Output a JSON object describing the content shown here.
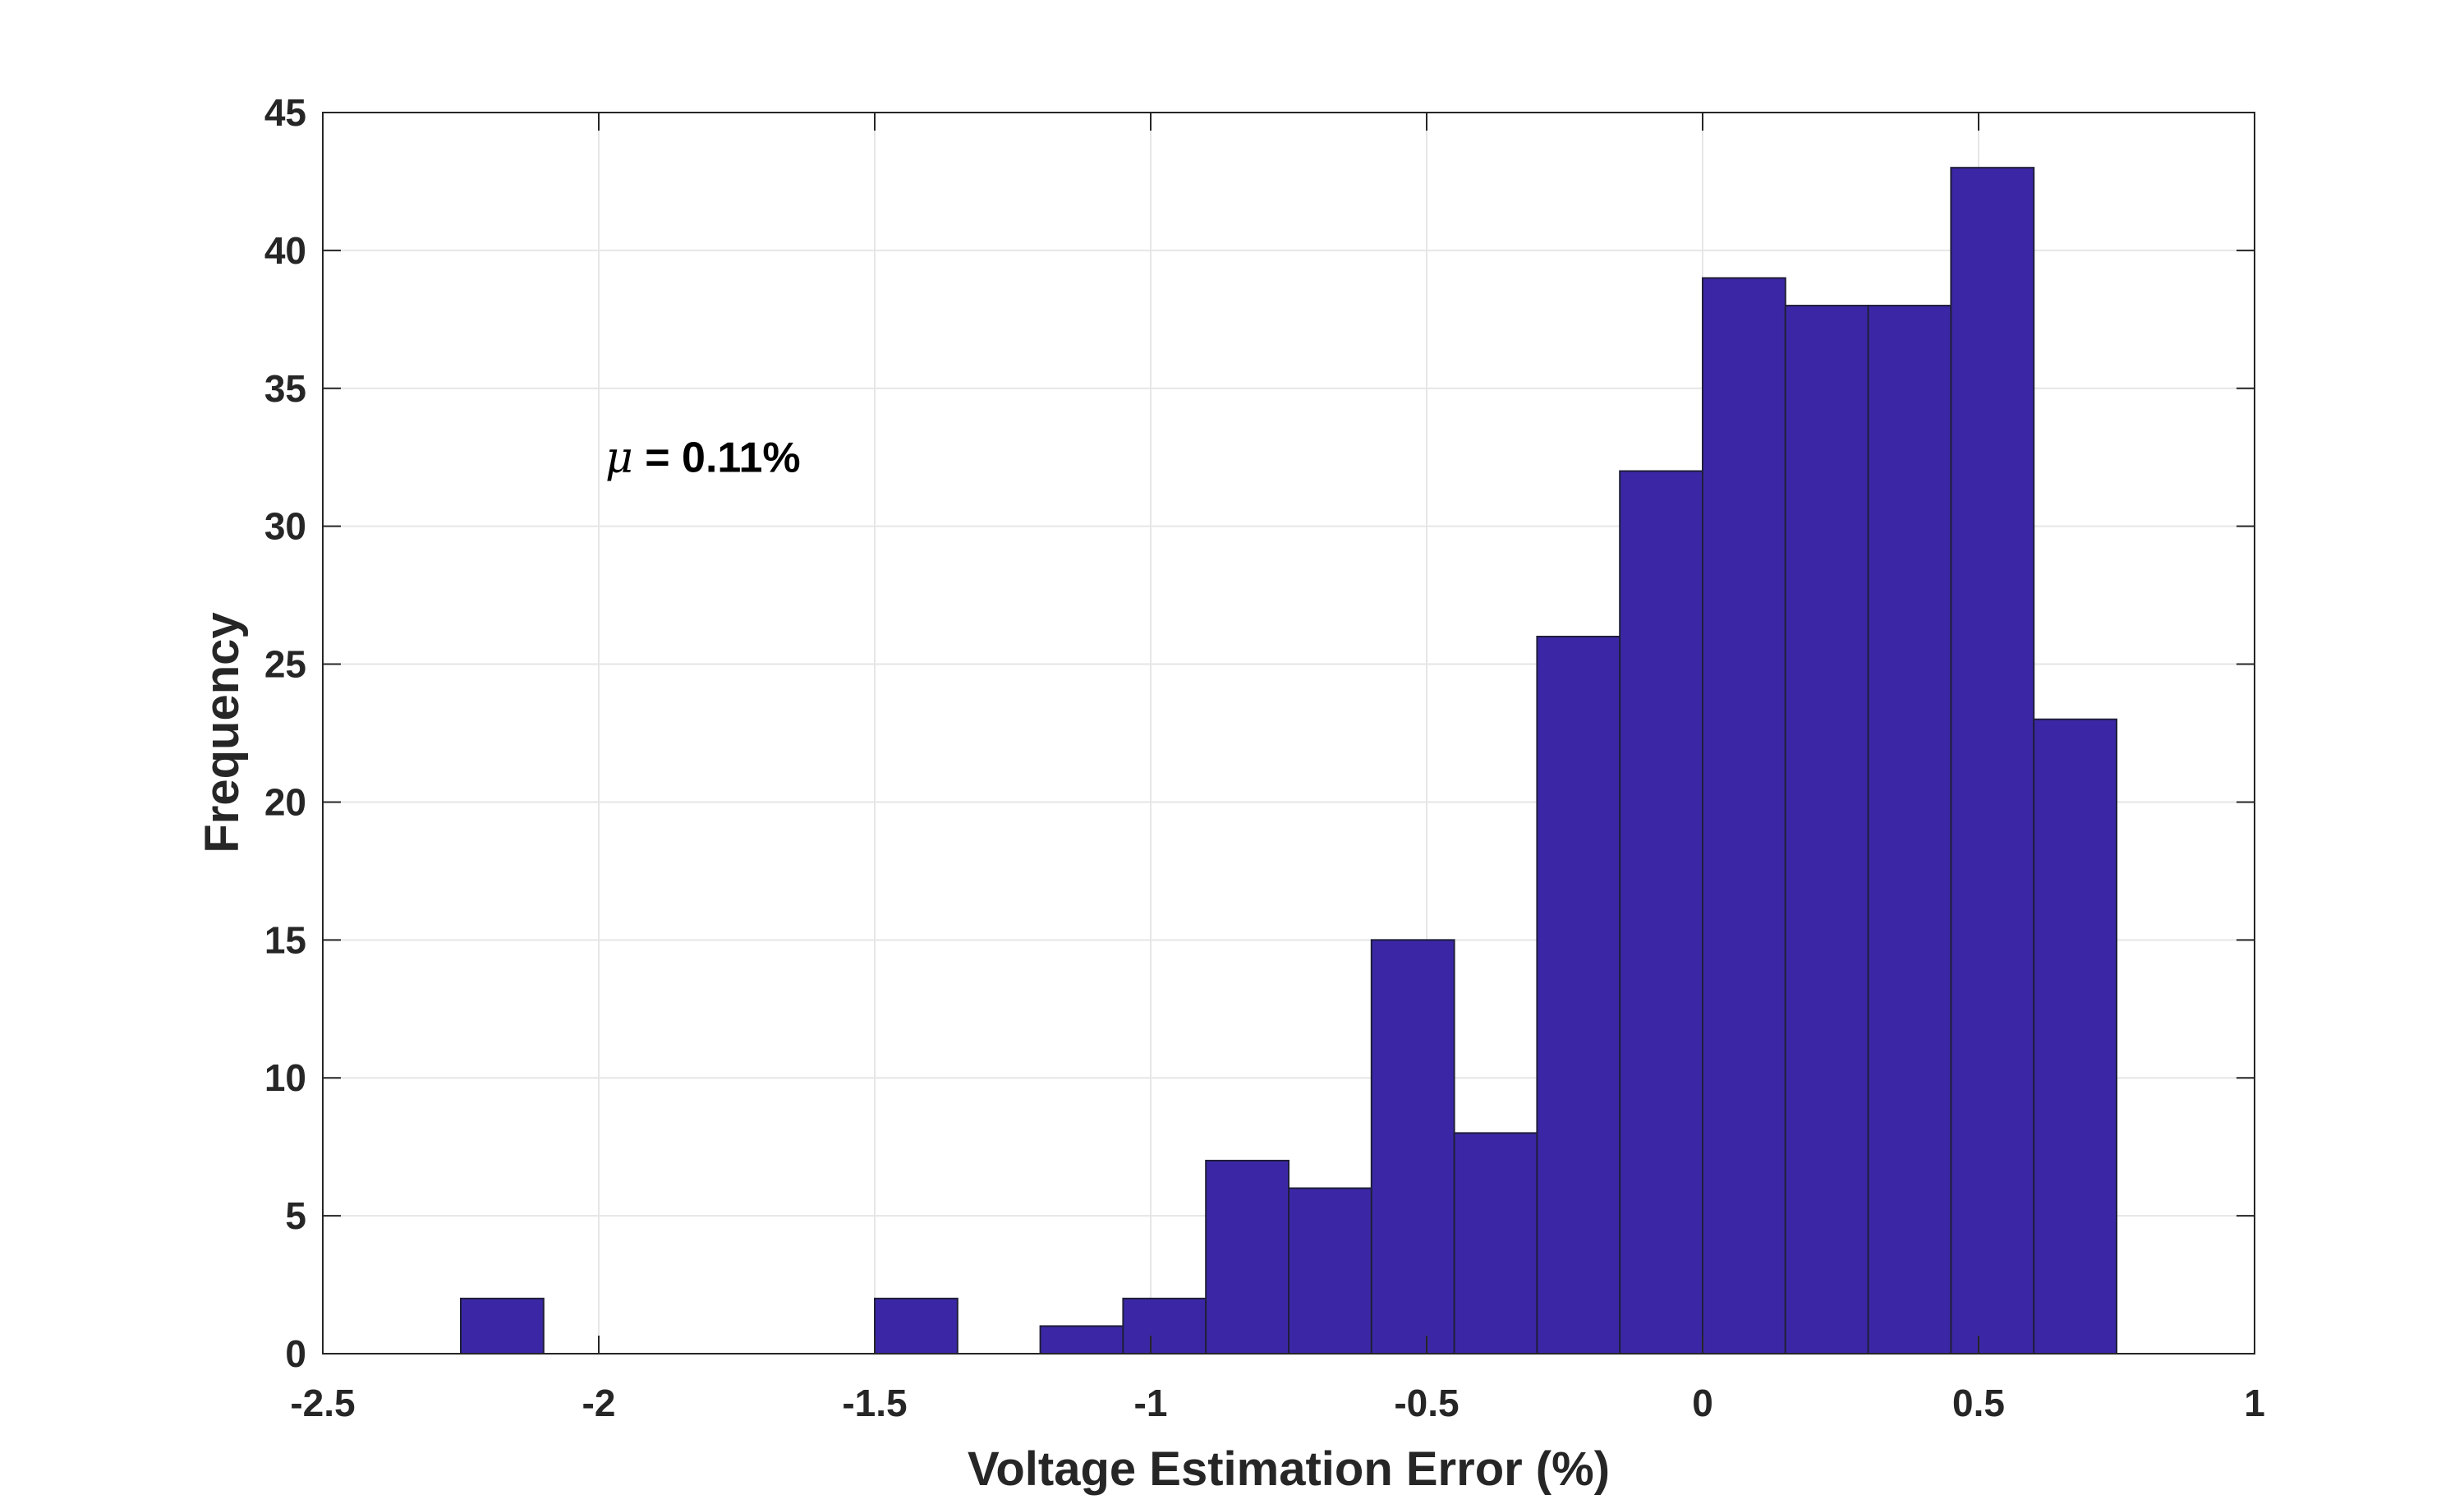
{
  "chart_data": {
    "type": "bar",
    "subtype": "histogram",
    "bin_edges": [
      -2.25,
      -2.1,
      -1.95,
      -1.8,
      -1.65,
      -1.5,
      -1.35,
      -1.2,
      -1.05,
      -0.9,
      -0.75,
      -0.6,
      -0.45,
      -0.3,
      -0.15,
      0.0,
      0.15,
      0.3,
      0.45,
      0.6,
      0.75
    ],
    "values": [
      2,
      0,
      0,
      0,
      0,
      2,
      0,
      1,
      2,
      7,
      6,
      15,
      8,
      26,
      32,
      39,
      38,
      38,
      43,
      23
    ],
    "bar_color": "#3b27a6",
    "bar_edge_color": "#1f1f3a",
    "xlabel": "Voltage Estimation Error (%)",
    "ylabel": "Frequency",
    "xlim": [
      -2.5,
      1
    ],
    "ylim": [
      0,
      45
    ],
    "xticks": [
      -2.5,
      -2,
      -1.5,
      -1,
      -0.5,
      0,
      0.5,
      1
    ],
    "xtick_labels": [
      "-2.5",
      "-2",
      "-1.5",
      "-1",
      "-0.5",
      "0",
      "0.5",
      "1"
    ],
    "yticks": [
      0,
      5,
      10,
      15,
      20,
      25,
      30,
      35,
      40,
      45
    ],
    "ytick_labels": [
      "0",
      "5",
      "10",
      "15",
      "20",
      "25",
      "30",
      "35",
      "40",
      "45"
    ],
    "grid": true,
    "annotation": {
      "symbol": "μ",
      "text": " = 0.11%",
      "x": -2.0,
      "y": 32.5
    }
  }
}
